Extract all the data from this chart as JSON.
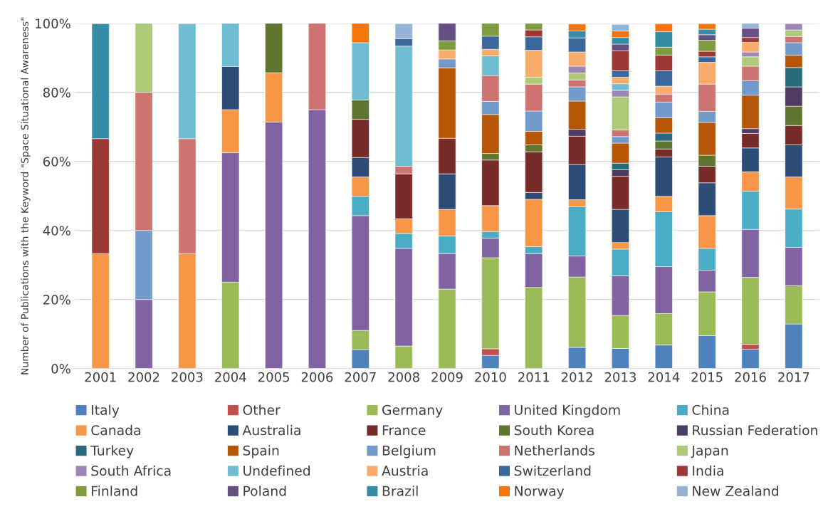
{
  "chart_data": {
    "type": "bar",
    "stacked": true,
    "ylabel": "Number of Publications with the Keyword \"Space Situational Awareness\"",
    "categories": [
      "2001",
      "2002",
      "2003",
      "2004",
      "2005",
      "2006",
      "2007",
      "2008",
      "2009",
      "2010",
      "2011",
      "2012",
      "2013",
      "2014",
      "2015",
      "2016",
      "2017"
    ],
    "ylim": [
      0,
      100
    ],
    "yticks": [
      {
        "value": 0,
        "label": "0%"
      },
      {
        "value": 20,
        "label": "20%"
      },
      {
        "value": 40,
        "label": "40%"
      },
      {
        "value": 60,
        "label": "60%"
      },
      {
        "value": 80,
        "label": "80%"
      },
      {
        "value": 100,
        "label": "100%"
      }
    ],
    "grid": "y",
    "legend": "bottom",
    "series": [
      {
        "name": "Italy",
        "color": "#4f81bd",
        "values": [
          null,
          null,
          null,
          null,
          null,
          null,
          5.5,
          null,
          null,
          3.8,
          null,
          6.1,
          5.8,
          6.8,
          9.5,
          5.6,
          12.9
        ]
      },
      {
        "name": "Other",
        "color": "#c0504d",
        "values": [
          null,
          null,
          null,
          null,
          null,
          null,
          null,
          null,
          null,
          1.9,
          null,
          null,
          null,
          null,
          null,
          1.4,
          null
        ]
      },
      {
        "name": "Germany",
        "color": "#9bbb59",
        "values": [
          null,
          null,
          null,
          25,
          null,
          null,
          5.5,
          6.5,
          23.0,
          26.4,
          23.5,
          20.4,
          9.6,
          9.1,
          12.7,
          19.4,
          11.1
        ]
      },
      {
        "name": "United Kingdom",
        "color": "#8064a2",
        "values": [
          null,
          20,
          null,
          37.5,
          71.4,
          75,
          33.3,
          28.3,
          10.3,
          5.7,
          9.8,
          6.1,
          11.5,
          13.6,
          6.3,
          13.9,
          11.1
        ]
      },
      {
        "name": "China",
        "color": "#4bacc6",
        "values": [
          null,
          null,
          null,
          null,
          null,
          null,
          5.6,
          4.3,
          5.1,
          1.9,
          2.0,
          14.3,
          7.7,
          15.9,
          6.3,
          11.1,
          11.1
        ]
      },
      {
        "name": "Canada",
        "color": "#f79646",
        "values": [
          33.3,
          null,
          33.3,
          12.5,
          14.3,
          null,
          5.6,
          4.3,
          7.7,
          7.5,
          13.7,
          2.0,
          1.9,
          4.5,
          9.5,
          5.6,
          9.3
        ]
      },
      {
        "name": "Australia",
        "color": "#2c4d75",
        "values": [
          null,
          null,
          null,
          12.5,
          null,
          null,
          5.6,
          null,
          10.3,
          null,
          2.0,
          10.2,
          9.6,
          11.4,
          9.5,
          6.9,
          9.3
        ]
      },
      {
        "name": "France",
        "color": "#772c2a",
        "values": [
          null,
          null,
          null,
          null,
          null,
          null,
          11.1,
          13.0,
          10.3,
          13.2,
          11.8,
          8.2,
          9.6,
          2.3,
          4.8,
          4.2,
          5.6
        ]
      },
      {
        "name": "South Korea",
        "color": "#5f7530",
        "values": [
          null,
          null,
          null,
          null,
          14.3,
          null,
          5.6,
          null,
          null,
          1.9,
          2.0,
          null,
          null,
          2.3,
          3.2,
          null,
          5.6
        ]
      },
      {
        "name": "Russian Federation",
        "color": "#4d3b62",
        "values": [
          null,
          null,
          null,
          null,
          null,
          null,
          null,
          null,
          null,
          null,
          null,
          2.0,
          1.9,
          null,
          null,
          1.4,
          5.6
        ]
      },
      {
        "name": "Turkey",
        "color": "#276a7c",
        "values": [
          null,
          null,
          null,
          null,
          null,
          null,
          null,
          null,
          null,
          null,
          null,
          null,
          1.9,
          2.3,
          null,
          null,
          5.6
        ]
      },
      {
        "name": "Spain",
        "color": "#b65708",
        "values": [
          null,
          null,
          null,
          null,
          null,
          null,
          null,
          null,
          20.4,
          11.3,
          3.9,
          8.2,
          5.8,
          4.5,
          9.5,
          9.7,
          3.6
        ]
      },
      {
        "name": "Belgium",
        "color": "#729aca",
        "values": [
          null,
          20,
          null,
          null,
          null,
          null,
          null,
          null,
          2.6,
          3.8,
          5.9,
          4.1,
          1.9,
          4.5,
          3.2,
          4.2,
          3.6
        ]
      },
      {
        "name": "Netherlands",
        "color": "#cd7371",
        "values": [
          null,
          40,
          33.3,
          null,
          null,
          25,
          null,
          2.2,
          null,
          7.5,
          7.8,
          2.0,
          1.9,
          2.3,
          7.9,
          4.2,
          1.8
        ]
      },
      {
        "name": "Japan",
        "color": "#afc97a",
        "values": [
          null,
          20,
          null,
          null,
          null,
          null,
          null,
          null,
          null,
          null,
          2.0,
          2.0,
          9.6,
          null,
          null,
          2.7,
          1.9
        ]
      },
      {
        "name": "South Africa",
        "color": "#9e86b8",
        "values": [
          null,
          null,
          null,
          null,
          null,
          null,
          null,
          null,
          null,
          null,
          null,
          2.0,
          1.9,
          null,
          null,
          1.4,
          1.8
        ]
      },
      {
        "name": "Undefined",
        "color": "#6fbdd1",
        "values": [
          null,
          null,
          33.3,
          12.5,
          null,
          null,
          16.6,
          34.8,
          null,
          5.7,
          null,
          null,
          1.9,
          null,
          null,
          null,
          null
        ]
      },
      {
        "name": "Austria",
        "color": "#f9ab6b",
        "values": [
          null,
          null,
          null,
          null,
          null,
          null,
          null,
          null,
          2.6,
          1.9,
          7.8,
          4.1,
          1.9,
          2.3,
          6.3,
          2.8,
          null
        ]
      },
      {
        "name": "Switzerland",
        "color": "#3a679c",
        "values": [
          null,
          null,
          null,
          null,
          null,
          null,
          null,
          2.2,
          null,
          3.8,
          3.9,
          4.1,
          1.9,
          4.5,
          1.6,
          null,
          null
        ]
      },
      {
        "name": "India",
        "color": "#9c3836",
        "values": [
          33.3,
          null,
          null,
          null,
          null,
          null,
          null,
          null,
          null,
          null,
          2.0,
          null,
          5.8,
          4.5,
          1.6,
          1.4,
          null
        ]
      },
      {
        "name": "Finland",
        "color": "#7f9b3f",
        "values": [
          null,
          null,
          null,
          null,
          null,
          null,
          null,
          null,
          2.6,
          3.7,
          1.9,
          null,
          null,
          2.3,
          3.2,
          null,
          null
        ]
      },
      {
        "name": "Poland",
        "color": "#654f83",
        "values": [
          null,
          null,
          null,
          null,
          null,
          null,
          null,
          null,
          5.1,
          null,
          null,
          null,
          1.9,
          null,
          1.6,
          2.7,
          null
        ]
      },
      {
        "name": "Brazil",
        "color": "#358ca4",
        "values": [
          33.3,
          null,
          null,
          null,
          null,
          null,
          null,
          null,
          null,
          null,
          null,
          2.0,
          1.9,
          4.5,
          1.6,
          null,
          null
        ]
      },
      {
        "name": "Norway",
        "color": "#f5750b",
        "values": [
          null,
          null,
          null,
          null,
          null,
          null,
          5.6,
          null,
          null,
          null,
          null,
          2.0,
          1.9,
          2.3,
          1.6,
          null,
          null
        ]
      },
      {
        "name": "New Zealand",
        "color": "#95b3d7",
        "values": [
          null,
          null,
          null,
          null,
          null,
          null,
          null,
          4.3,
          null,
          null,
          null,
          null,
          1.9,
          null,
          null,
          1.4,
          null
        ]
      }
    ]
  }
}
